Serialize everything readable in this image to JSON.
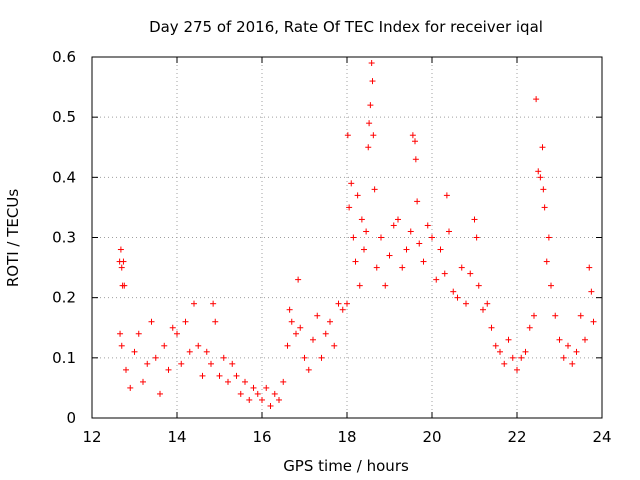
{
  "chart_data": {
    "type": "scatter",
    "title": "Day 275 of 2016, Rate Of TEC Index for receiver iqal",
    "xlabel": "GPS time / hours",
    "ylabel": "ROTI / TECUs",
    "xlim": [
      12,
      24
    ],
    "ylim": [
      0,
      0.6
    ],
    "xticks": [
      "12",
      "14",
      "16",
      "18",
      "20",
      "22",
      "24"
    ],
    "yticks": [
      "0",
      "0.1",
      "0.2",
      "0.3",
      "0.4",
      "0.5",
      "0.6"
    ],
    "grid": true,
    "marker": "+",
    "color": "#ff0000",
    "series": [
      {
        "name": "ROTI",
        "points": [
          [
            12.65,
            0.26
          ],
          [
            12.68,
            0.28
          ],
          [
            12.7,
            0.25
          ],
          [
            12.72,
            0.22
          ],
          [
            12.74,
            0.26
          ],
          [
            12.76,
            0.22
          ],
          [
            12.66,
            0.14
          ],
          [
            12.7,
            0.12
          ],
          [
            12.8,
            0.08
          ],
          [
            12.9,
            0.05
          ],
          [
            13.0,
            0.11
          ],
          [
            13.1,
            0.14
          ],
          [
            13.2,
            0.06
          ],
          [
            13.3,
            0.09
          ],
          [
            13.4,
            0.16
          ],
          [
            13.5,
            0.1
          ],
          [
            13.6,
            0.04
          ],
          [
            13.7,
            0.12
          ],
          [
            13.8,
            0.08
          ],
          [
            13.9,
            0.15
          ],
          [
            14.0,
            0.14
          ],
          [
            14.1,
            0.09
          ],
          [
            14.2,
            0.16
          ],
          [
            14.3,
            0.11
          ],
          [
            14.4,
            0.19
          ],
          [
            14.5,
            0.12
          ],
          [
            14.6,
            0.07
          ],
          [
            14.7,
            0.11
          ],
          [
            14.8,
            0.09
          ],
          [
            14.85,
            0.19
          ],
          [
            14.9,
            0.16
          ],
          [
            15.0,
            0.07
          ],
          [
            15.1,
            0.1
          ],
          [
            15.2,
            0.06
          ],
          [
            15.3,
            0.09
          ],
          [
            15.4,
            0.07
          ],
          [
            15.5,
            0.04
          ],
          [
            15.6,
            0.06
          ],
          [
            15.7,
            0.03
          ],
          [
            15.8,
            0.05
          ],
          [
            15.9,
            0.04
          ],
          [
            16.0,
            0.03
          ],
          [
            16.1,
            0.05
          ],
          [
            16.2,
            0.02
          ],
          [
            16.3,
            0.04
          ],
          [
            16.4,
            0.03
          ],
          [
            16.5,
            0.06
          ],
          [
            16.6,
            0.12
          ],
          [
            16.65,
            0.18
          ],
          [
            16.7,
            0.16
          ],
          [
            16.8,
            0.14
          ],
          [
            16.85,
            0.23
          ],
          [
            16.9,
            0.15
          ],
          [
            17.0,
            0.1
          ],
          [
            17.1,
            0.08
          ],
          [
            17.2,
            0.13
          ],
          [
            17.3,
            0.17
          ],
          [
            17.4,
            0.1
          ],
          [
            17.5,
            0.14
          ],
          [
            17.6,
            0.16
          ],
          [
            17.7,
            0.12
          ],
          [
            17.8,
            0.19
          ],
          [
            17.9,
            0.18
          ],
          [
            18.0,
            0.19
          ],
          [
            18.02,
            0.47
          ],
          [
            18.05,
            0.35
          ],
          [
            18.1,
            0.39
          ],
          [
            18.15,
            0.3
          ],
          [
            18.2,
            0.26
          ],
          [
            18.25,
            0.37
          ],
          [
            18.3,
            0.22
          ],
          [
            18.35,
            0.33
          ],
          [
            18.4,
            0.28
          ],
          [
            18.45,
            0.31
          ],
          [
            18.5,
            0.45
          ],
          [
            18.52,
            0.49
          ],
          [
            18.55,
            0.52
          ],
          [
            18.58,
            0.59
          ],
          [
            18.6,
            0.56
          ],
          [
            18.62,
            0.47
          ],
          [
            18.65,
            0.38
          ],
          [
            18.7,
            0.25
          ],
          [
            18.8,
            0.3
          ],
          [
            18.9,
            0.22
          ],
          [
            19.0,
            0.27
          ],
          [
            19.1,
            0.32
          ],
          [
            19.2,
            0.33
          ],
          [
            19.3,
            0.25
          ],
          [
            19.4,
            0.28
          ],
          [
            19.5,
            0.31
          ],
          [
            19.55,
            0.47
          ],
          [
            19.6,
            0.46
          ],
          [
            19.62,
            0.43
          ],
          [
            19.65,
            0.36
          ],
          [
            19.7,
            0.29
          ],
          [
            19.8,
            0.26
          ],
          [
            19.9,
            0.32
          ],
          [
            20.0,
            0.3
          ],
          [
            20.1,
            0.23
          ],
          [
            20.2,
            0.28
          ],
          [
            20.3,
            0.24
          ],
          [
            20.35,
            0.37
          ],
          [
            20.4,
            0.31
          ],
          [
            20.5,
            0.21
          ],
          [
            20.6,
            0.2
          ],
          [
            20.7,
            0.25
          ],
          [
            20.8,
            0.19
          ],
          [
            20.9,
            0.24
          ],
          [
            21.0,
            0.33
          ],
          [
            21.05,
            0.3
          ],
          [
            21.1,
            0.22
          ],
          [
            21.2,
            0.18
          ],
          [
            21.3,
            0.19
          ],
          [
            21.4,
            0.15
          ],
          [
            21.5,
            0.12
          ],
          [
            21.6,
            0.11
          ],
          [
            21.7,
            0.09
          ],
          [
            21.8,
            0.13
          ],
          [
            21.9,
            0.1
          ],
          [
            22.0,
            0.08
          ],
          [
            22.1,
            0.1
          ],
          [
            22.2,
            0.11
          ],
          [
            22.3,
            0.15
          ],
          [
            22.4,
            0.17
          ],
          [
            22.45,
            0.53
          ],
          [
            22.5,
            0.41
          ],
          [
            22.55,
            0.4
          ],
          [
            22.6,
            0.45
          ],
          [
            22.62,
            0.38
          ],
          [
            22.65,
            0.35
          ],
          [
            22.7,
            0.26
          ],
          [
            22.75,
            0.3
          ],
          [
            22.8,
            0.22
          ],
          [
            22.9,
            0.17
          ],
          [
            23.0,
            0.13
          ],
          [
            23.1,
            0.1
          ],
          [
            23.2,
            0.12
          ],
          [
            23.3,
            0.09
          ],
          [
            23.4,
            0.11
          ],
          [
            23.5,
            0.17
          ],
          [
            23.6,
            0.13
          ],
          [
            23.7,
            0.25
          ],
          [
            23.75,
            0.21
          ],
          [
            23.8,
            0.16
          ]
        ]
      }
    ]
  }
}
